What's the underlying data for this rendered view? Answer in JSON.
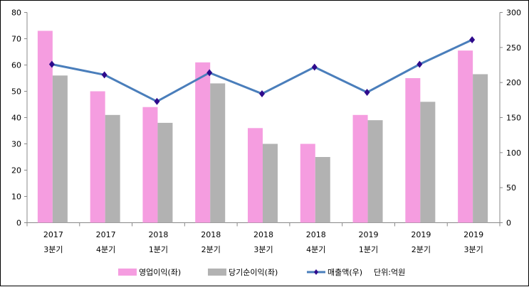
{
  "chart_data": {
    "type": "bar",
    "categories": [
      [
        "2017",
        "3분기"
      ],
      [
        "2017",
        "4분기"
      ],
      [
        "2018",
        "1분기"
      ],
      [
        "2018",
        "2분기"
      ],
      [
        "2018",
        "3분기"
      ],
      [
        "2018",
        "4분기"
      ],
      [
        "2019",
        "1분기"
      ],
      [
        "2019",
        "2분기"
      ],
      [
        "2019",
        "3분기"
      ]
    ],
    "series": [
      {
        "name": "영업이익(좌)",
        "type": "bar",
        "axis": "left",
        "color": "#f59de0",
        "values": [
          73,
          50,
          44,
          61,
          36,
          30,
          41,
          55,
          65.5
        ]
      },
      {
        "name": "당기순이익(좌)",
        "type": "bar",
        "axis": "left",
        "color": "#b2b2b2",
        "values": [
          56,
          41,
          38,
          53,
          30,
          25,
          39,
          46,
          56.5
        ]
      },
      {
        "name": "매출액(우)",
        "type": "line",
        "axis": "right",
        "color": "#4a7ebb",
        "marker_color": "#2e0a8c",
        "values": [
          226,
          211,
          173,
          214,
          184,
          222,
          186,
          226,
          261
        ]
      }
    ],
    "ylim_left": [
      0,
      80
    ],
    "yticks_left": [
      0,
      10,
      20,
      30,
      40,
      50,
      60,
      70,
      80
    ],
    "ylim_right": [
      0,
      300
    ],
    "yticks_right": [
      0,
      50,
      100,
      150,
      200,
      250,
      300
    ],
    "unit_note": "단위:억원",
    "legend": "bottom",
    "grid": false
  }
}
